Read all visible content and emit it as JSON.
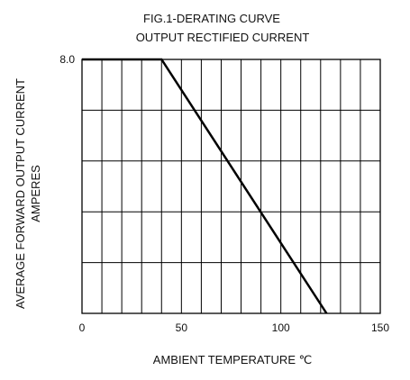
{
  "chart_data": {
    "type": "line",
    "title": "FIG.1-DERATING CURVE",
    "subtitle": "OUTPUT RECTIFIED CURRENT",
    "xlabel": "AMBIENT TEMPERATURE ℃",
    "ylabel_line1": "AVERAGE FORWARD OUTPUT CURRENT",
    "ylabel_line2": "AMPERES",
    "xlim": [
      0,
      150
    ],
    "ylim": [
      0,
      8.0
    ],
    "x_ticks": [
      0,
      50,
      100,
      150
    ],
    "x_tick_labels": [
      "0",
      "50",
      "100",
      "150"
    ],
    "y_ticks": [
      8.0
    ],
    "y_tick_labels": [
      "8.0"
    ],
    "grid": true,
    "grid_x_step": 10,
    "grid_y_step": 1.6,
    "line_color": "#000000",
    "series": [
      {
        "x": [
          0,
          40,
          123
        ],
        "y": [
          8.0,
          8.0,
          0
        ]
      }
    ]
  }
}
